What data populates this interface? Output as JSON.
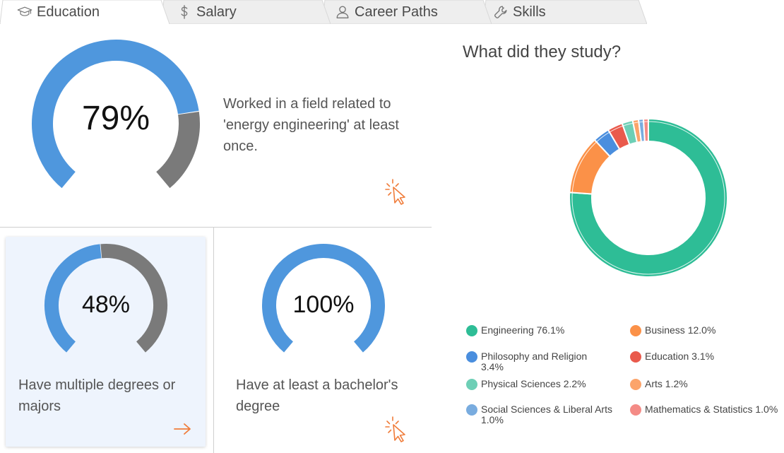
{
  "tabs": [
    {
      "label": "Education",
      "icon": "graduation-cap-icon"
    },
    {
      "label": "Salary",
      "icon": "dollar-icon"
    },
    {
      "label": "Career Paths",
      "icon": "user-icon"
    },
    {
      "label": "Skills",
      "icon": "wrench-icon"
    }
  ],
  "related_field": {
    "percent": 79,
    "percent_label": "79%",
    "description": "Worked in a field related to 'energy engineering' at least once."
  },
  "multiple_degrees": {
    "percent": 48,
    "percent_label": "48%",
    "description": "Have multiple degrees or majors"
  },
  "bachelors": {
    "percent": 100,
    "percent_label": "100%",
    "description": "Have at least a bachelor's degree"
  },
  "colors": {
    "gauge_fill": "#4f97dd",
    "gauge_track": "#7a7a7a",
    "accent_orange": "#f07c3a"
  },
  "study": {
    "title": "What did they study?",
    "chart_data": {
      "type": "pie",
      "categories": [
        "Engineering",
        "Business",
        "Philosophy and Religion",
        "Education",
        "Physical Sciences",
        "Arts",
        "Social Sciences & Liberal Arts",
        "Mathematics & Statistics"
      ],
      "values": [
        76.1,
        12.0,
        3.4,
        3.1,
        2.2,
        1.2,
        1.0,
        1.0
      ],
      "colors": [
        "#2ebd96",
        "#fb9148",
        "#4a8ede",
        "#e95a4c",
        "#6ecfb6",
        "#fca46a",
        "#79acdf",
        "#f48b86"
      ],
      "legend": [
        "Engineering 76.1%",
        "Business 12.0%",
        "Philosophy and Religion 3.4%",
        "Education 3.1%",
        "Physical Sciences 2.2%",
        "Arts 1.2%",
        "Social Sciences & Liberal Arts 1.0%",
        "Mathematics & Statistics 1.0%"
      ],
      "legend_placement": "bottom"
    }
  }
}
